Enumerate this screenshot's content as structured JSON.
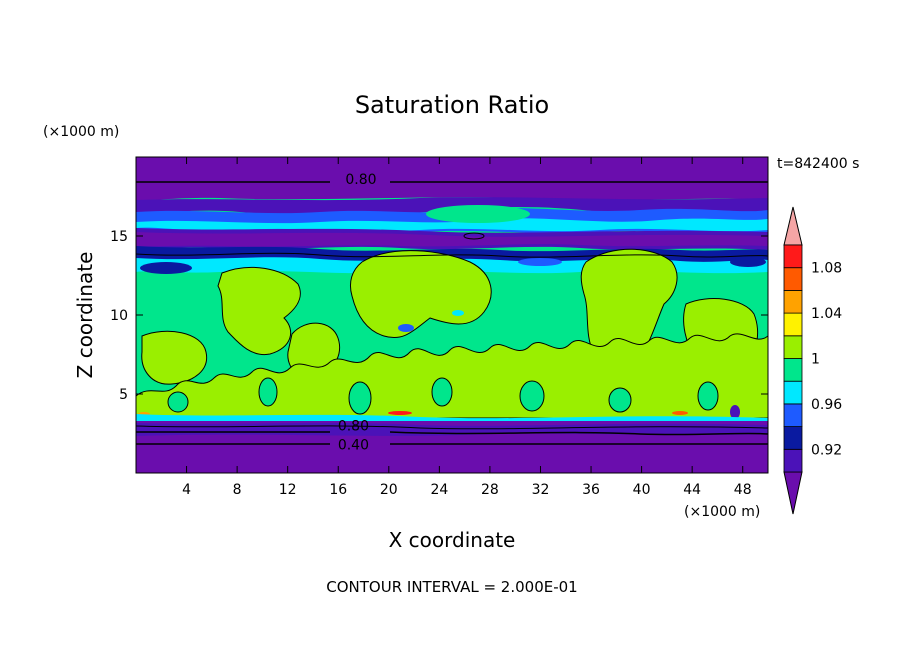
{
  "chart_data": {
    "type": "heatmap",
    "title": "Saturation Ratio",
    "xlabel": "X coordinate",
    "ylabel": "Z coordinate",
    "x_unit": "(×1000 m)",
    "y_unit": "(×1000 m)",
    "time_label": "t=842400 s",
    "footer": "CONTOUR INTERVAL = 2.000E-01",
    "xlim": [
      0,
      50
    ],
    "ylim": [
      0,
      20
    ],
    "x_ticks": [
      4,
      8,
      12,
      16,
      20,
      24,
      28,
      32,
      36,
      40,
      44,
      48
    ],
    "y_ticks": [
      5,
      10,
      15
    ],
    "contour_labels": [
      {
        "text": "0.80",
        "x": 17.8,
        "z": 18.6
      },
      {
        "text": "0.80",
        "x": 17.2,
        "z": 3.0
      },
      {
        "text": "0.40",
        "x": 17.2,
        "z": 1.8
      }
    ],
    "colorbar": {
      "labels": [
        "0.92",
        "0.96",
        "1",
        "1.04",
        "1.08"
      ],
      "colors": [
        "#6a0dad",
        "#4b12b8",
        "#0a1aa0",
        "#1e5bff",
        "#00e8ff",
        "#00e68c",
        "#9aef00",
        "#fff200",
        "#ffa200",
        "#ff5a00",
        "#ff1a1a",
        "#f5a5a5"
      ]
    },
    "fields": {
      "background": "#00e68c",
      "low_saturation": "#6a0dad",
      "dark_band": "#4b12b8",
      "navy": "#0a1aa0",
      "blue": "#1e5bff",
      "cyan": "#00e8ff",
      "supersat": "#9aef00"
    }
  }
}
